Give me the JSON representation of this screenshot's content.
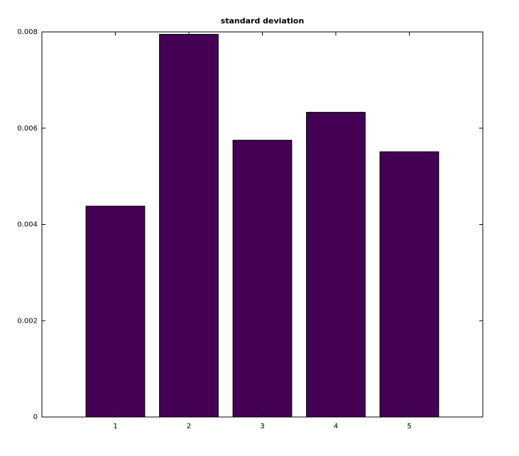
{
  "chart_data": {
    "type": "bar",
    "title": "standard deviation",
    "x": [
      1,
      2,
      3,
      4,
      5
    ],
    "values": [
      0.00438,
      0.00795,
      0.00575,
      0.00633,
      0.00551
    ],
    "color": "#440154",
    "xlim": [
      0,
      6
    ],
    "xticks": [
      1,
      2,
      3,
      4,
      5
    ],
    "ylim": [
      0,
      0.008
    ],
    "yticks": [
      0,
      0.002,
      0.004,
      0.006,
      0.008
    ],
    "grid": false
  }
}
